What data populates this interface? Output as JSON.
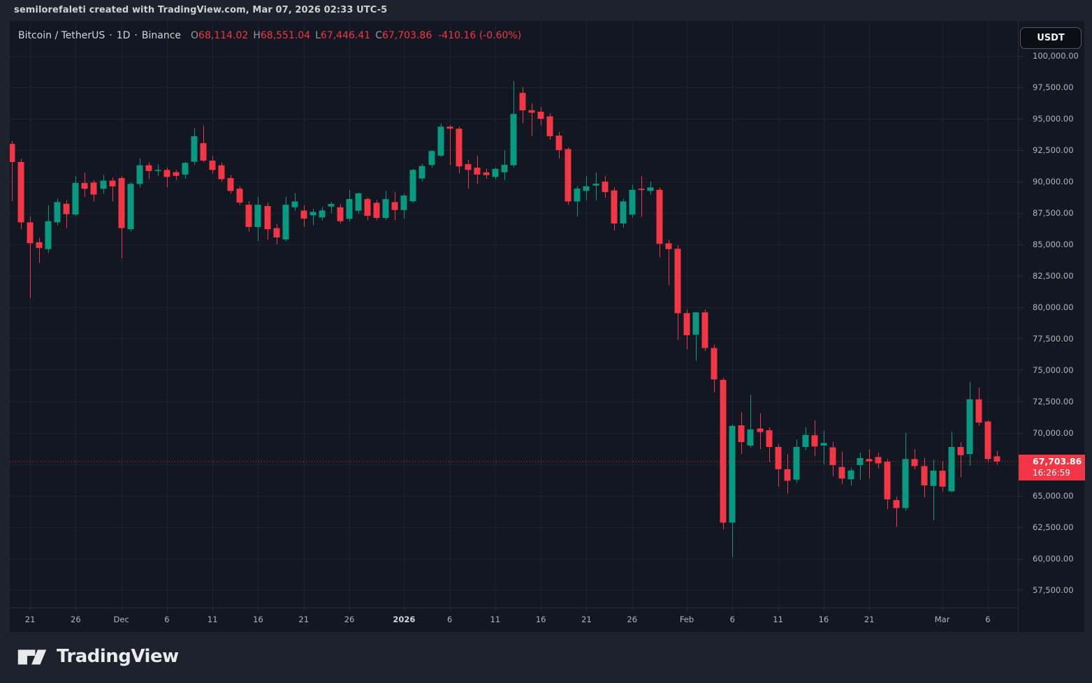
{
  "top_bar": {
    "attribution": "semilorefaleti created with TradingView.com, Mar 07, 2026 02:33 UTC-5"
  },
  "header": {
    "symbol": "Bitcoin / TetherUS",
    "separator": "·",
    "interval": "1D",
    "exchange": "Binance",
    "ohlc": {
      "open_label": "O",
      "open": "68,114.02",
      "high_label": "H",
      "high": "68,551.04",
      "low_label": "L",
      "low": "67,446.41",
      "close_label": "C",
      "close": "67,703.86",
      "change": "-410.16 (-0.60%)"
    }
  },
  "price_axis": {
    "currency_button": "USDT",
    "last_price_label": {
      "price": "67,703.86",
      "countdown": "16:26:59"
    }
  },
  "footer": {
    "brand": "TradingView"
  },
  "colors": {
    "up": "#089981",
    "down": "#f23645",
    "background": "#131722",
    "panel": "#1e222d",
    "grid": "#1e2330",
    "axis_text": "#b2b5be",
    "title_text": "#d1d4dc"
  },
  "chart_data": {
    "type": "candlestick",
    "title": "Bitcoin / TetherUS · 1D · Binance",
    "first_candle_date": "2025-11-19",
    "last_candle_date": "2026-03-07",
    "last_price": 67703.86,
    "countdown": "16:26:59",
    "y_axis": {
      "ticks": [
        "100,000.00",
        "97,500.00",
        "95,000.00",
        "92,500.00",
        "90,000.00",
        "87,500.00",
        "85,000.00",
        "82,500.00",
        "80,000.00",
        "77,500.00",
        "75,000.00",
        "72,500.00",
        "70,000.00",
        "67,500.00",
        "65,000.00",
        "62,500.00",
        "60,000.00",
        "57,500.00"
      ]
    },
    "x_axis": {
      "ticks": [
        {
          "label": "21",
          "index": 2
        },
        {
          "label": "26",
          "index": 7
        },
        {
          "label": "Dec",
          "index": 12
        },
        {
          "label": "6",
          "index": 17
        },
        {
          "label": "11",
          "index": 22
        },
        {
          "label": "16",
          "index": 27
        },
        {
          "label": "21",
          "index": 32
        },
        {
          "label": "26",
          "index": 37
        },
        {
          "label": "2026",
          "index": 43,
          "bold": true
        },
        {
          "label": "6",
          "index": 48
        },
        {
          "label": "11",
          "index": 53
        },
        {
          "label": "16",
          "index": 58
        },
        {
          "label": "21",
          "index": 63
        },
        {
          "label": "26",
          "index": 68
        },
        {
          "label": "Feb",
          "index": 74
        },
        {
          "label": "6",
          "index": 79
        },
        {
          "label": "11",
          "index": 84
        },
        {
          "label": "16",
          "index": 89
        },
        {
          "label": "21",
          "index": 94
        },
        {
          "label": "Mar",
          "index": 102
        },
        {
          "label": "6",
          "index": 107
        }
      ]
    },
    "candles": [
      [
        92970,
        93200,
        88400,
        91530
      ],
      [
        91530,
        91800,
        86180,
        86730
      ],
      [
        86730,
        87190,
        80710,
        85070
      ],
      [
        85150,
        85500,
        83490,
        84690
      ],
      [
        84600,
        88080,
        84300,
        86820
      ],
      [
        86730,
        88600,
        86500,
        88340
      ],
      [
        88210,
        88500,
        86270,
        87380
      ],
      [
        87350,
        90430,
        87200,
        89860
      ],
      [
        89860,
        90700,
        88760,
        89400
      ],
      [
        89900,
        90100,
        88390,
        88940
      ],
      [
        89400,
        90510,
        89000,
        90050
      ],
      [
        90050,
        90300,
        88390,
        89590
      ],
      [
        90250,
        90400,
        83860,
        86270
      ],
      [
        86180,
        89900,
        85990,
        89790
      ],
      [
        89790,
        91820,
        89500,
        91270
      ],
      [
        91270,
        91500,
        90160,
        90810
      ],
      [
        90810,
        91360,
        90430,
        90900
      ],
      [
        90900,
        91100,
        89510,
        90340
      ],
      [
        90720,
        90900,
        90100,
        90430
      ],
      [
        90530,
        91550,
        90200,
        91460
      ],
      [
        91550,
        94230,
        91300,
        93580
      ],
      [
        93030,
        94420,
        91500,
        91640
      ],
      [
        91640,
        92000,
        90600,
        90900
      ],
      [
        91270,
        91500,
        89980,
        90160
      ],
      [
        90250,
        90500,
        89000,
        89230
      ],
      [
        89410,
        89600,
        88100,
        88300
      ],
      [
        88130,
        88400,
        86000,
        86360
      ],
      [
        86360,
        88770,
        85250,
        88130
      ],
      [
        88030,
        88300,
        85350,
        86180
      ],
      [
        86270,
        86600,
        84970,
        85530
      ],
      [
        85370,
        88770,
        85200,
        88130
      ],
      [
        87930,
        89040,
        87650,
        88390
      ],
      [
        87670,
        88100,
        86370,
        87020
      ],
      [
        87290,
        87800,
        86500,
        87560
      ],
      [
        87120,
        87950,
        86900,
        87670
      ],
      [
        87990,
        88350,
        87450,
        88190
      ],
      [
        87930,
        88200,
        86640,
        86820
      ],
      [
        87010,
        89320,
        86800,
        88580
      ],
      [
        87650,
        89100,
        87400,
        89040
      ],
      [
        88580,
        88700,
        86900,
        87250
      ],
      [
        88280,
        88500,
        86900,
        87080
      ],
      [
        87080,
        89230,
        86920,
        88580
      ],
      [
        88340,
        89140,
        86920,
        87710
      ],
      [
        87710,
        89000,
        87050,
        88860
      ],
      [
        88400,
        90990,
        88300,
        90900
      ],
      [
        90220,
        91400,
        90000,
        91210
      ],
      [
        91290,
        92490,
        91100,
        92400
      ],
      [
        92030,
        94600,
        91940,
        94340
      ],
      [
        94340,
        94450,
        91270,
        94180
      ],
      [
        94180,
        94350,
        90620,
        91180
      ],
      [
        91360,
        91700,
        89420,
        90900
      ],
      [
        91080,
        92040,
        89790,
        90530
      ],
      [
        90700,
        91000,
        90200,
        90490
      ],
      [
        90340,
        91100,
        90150,
        90980
      ],
      [
        90710,
        92470,
        90080,
        91300
      ],
      [
        91270,
        97970,
        91100,
        95350
      ],
      [
        97030,
        97500,
        94600,
        95640
      ],
      [
        95650,
        96200,
        93600,
        95450
      ],
      [
        95530,
        95900,
        94420,
        94970
      ],
      [
        95160,
        95400,
        93300,
        93580
      ],
      [
        93630,
        93900,
        91820,
        92470
      ],
      [
        92560,
        92700,
        88120,
        88390
      ],
      [
        88390,
        89600,
        87190,
        89410
      ],
      [
        89230,
        90430,
        88480,
        89600
      ],
      [
        89650,
        90700,
        88480,
        89800
      ],
      [
        89970,
        90400,
        88700,
        89140
      ],
      [
        89270,
        89500,
        86080,
        86640
      ],
      [
        86640,
        88600,
        86300,
        88390
      ],
      [
        87340,
        89700,
        87100,
        89320
      ],
      [
        89400,
        90430,
        87190,
        89300
      ],
      [
        89230,
        89970,
        88960,
        89510
      ],
      [
        89320,
        89510,
        83950,
        85020
      ],
      [
        85060,
        85340,
        81730,
        84600
      ],
      [
        84630,
        84900,
        77400,
        79500
      ],
      [
        79510,
        79800,
        76640,
        77750
      ],
      [
        77790,
        79600,
        75710,
        79570
      ],
      [
        79570,
        79800,
        76500,
        76730
      ],
      [
        76730,
        77000,
        73210,
        74230
      ],
      [
        74200,
        74350,
        62290,
        62840
      ],
      [
        62840,
        70650,
        60080,
        70530
      ],
      [
        70580,
        71640,
        68300,
        69250
      ],
      [
        68970,
        73030,
        68800,
        70250
      ],
      [
        70330,
        71540,
        68690,
        70050
      ],
      [
        70190,
        70400,
        67650,
        68860
      ],
      [
        68860,
        69100,
        65710,
        67090
      ],
      [
        67090,
        68300,
        65150,
        66170
      ],
      [
        66260,
        69450,
        66000,
        68860
      ],
      [
        68860,
        70430,
        68600,
        69820
      ],
      [
        69790,
        70980,
        68130,
        68900
      ],
      [
        68970,
        70150,
        67470,
        69180
      ],
      [
        68830,
        69270,
        66550,
        67420
      ],
      [
        67270,
        68490,
        65920,
        66350
      ],
      [
        66290,
        67200,
        65800,
        67000
      ],
      [
        67420,
        68400,
        66260,
        67980
      ],
      [
        67900,
        68690,
        66350,
        67720
      ],
      [
        68060,
        68420,
        67180,
        67560
      ],
      [
        67690,
        67900,
        63900,
        64690
      ],
      [
        64630,
        64910,
        62520,
        64000
      ],
      [
        64000,
        69990,
        63800,
        67900
      ],
      [
        67900,
        68690,
        67070,
        67340
      ],
      [
        67340,
        67990,
        64870,
        65800
      ],
      [
        65760,
        67860,
        63030,
        66970
      ],
      [
        66970,
        67690,
        65330,
        65710
      ],
      [
        65330,
        70100,
        65240,
        68860
      ],
      [
        68860,
        69230,
        66460,
        68210
      ],
      [
        68300,
        74040,
        67360,
        72650
      ],
      [
        72650,
        73580,
        70530,
        70800
      ],
      [
        70890,
        71000,
        67620,
        67900
      ],
      [
        68114.02,
        68551.04,
        67446.41,
        67703.86
      ]
    ]
  }
}
